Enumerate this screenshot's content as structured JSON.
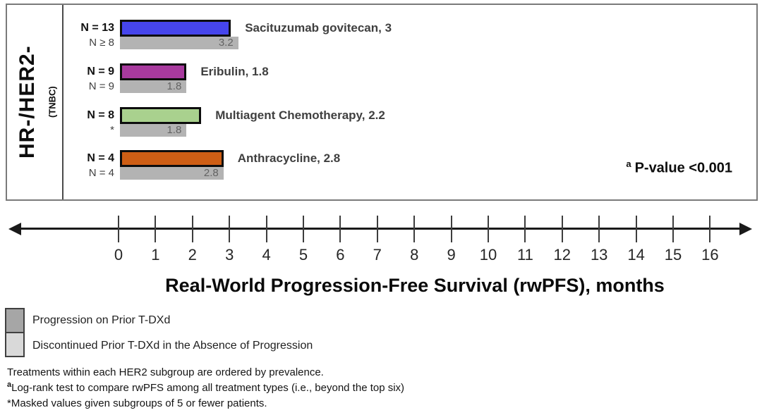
{
  "chart_data": {
    "type": "bar",
    "orientation": "horizontal",
    "group": {
      "label": "HR-/HER2-",
      "sublabel": "(TNBC)"
    },
    "xlabel": "Real-World Progression-Free Survival (rwPFS), months",
    "xlim": [
      0,
      16
    ],
    "x_ticks": [
      0,
      1,
      2,
      3,
      4,
      5,
      6,
      7,
      8,
      9,
      10,
      11,
      12,
      13,
      14,
      15,
      16
    ],
    "grid": "off",
    "gray_bar_color": "#B3B3B3",
    "rows": [
      {
        "treatment": "Sacituzumab govitecan",
        "label": "Sacituzumab govitecan, 3",
        "n_colored": "N = 13",
        "n_gray": "N ≥ 8",
        "colored_value": 3,
        "gray_value": 3.2,
        "gray_value_label": "3.2",
        "color": "#4645EC"
      },
      {
        "treatment": "Eribulin",
        "label": "Eribulin, 1.8",
        "n_colored": "N = 9",
        "n_gray": "N = 9",
        "colored_value": 1.8,
        "gray_value": 1.8,
        "gray_value_label": "1.8",
        "color": "#A83A9E"
      },
      {
        "treatment": "Multiagent Chemotherapy",
        "label": "Multiagent Chemotherapy, 2.2",
        "n_colored": "N = 8",
        "n_gray": "*",
        "colored_value": 2.2,
        "gray_value": 1.8,
        "gray_value_label": "1.8",
        "color": "#A9D18E"
      },
      {
        "treatment": "Anthracycline",
        "label": "Anthracycline, 2.8",
        "n_colored": "N = 4",
        "n_gray": "N = 4",
        "colored_value": 2.8,
        "gray_value": 2.8,
        "gray_value_label": "2.8",
        "color": "#CE5E15"
      }
    ],
    "annotation": {
      "sup": "a",
      "text": "P-value <0.001"
    }
  },
  "legend": {
    "items": [
      {
        "label": "Progression on Prior T-DXd",
        "color": "#A6A6A6"
      },
      {
        "label": "Discontinued Prior T-DXd in the Absence of Progression",
        "color": "#D9D9D9"
      }
    ]
  },
  "footnotes": [
    {
      "sup": "",
      "text": "Treatments within each HER2 subgroup are ordered by prevalence."
    },
    {
      "sup": "a",
      "text": "Log-rank test to compare rwPFS among all treatment types (i.e., beyond the top six)"
    },
    {
      "sup": "",
      "text": "*Masked values given subgroups of 5 or fewer patients."
    }
  ]
}
